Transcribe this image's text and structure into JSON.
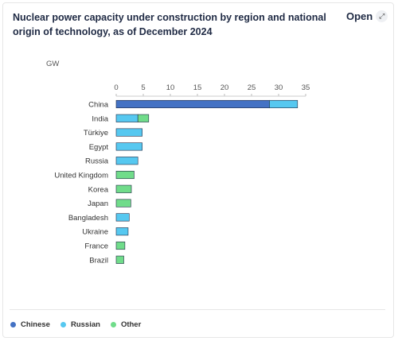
{
  "title": "Nuclear power capacity under construction by region and national origin of technology, as of December 2024",
  "open_button": {
    "label": "Open",
    "icon": "expand-icon"
  },
  "chart_data": {
    "type": "bar",
    "orientation": "horizontal",
    "stacked": true,
    "unit_label": "GW",
    "xlim": [
      0,
      35
    ],
    "ticks": [
      0,
      5,
      10,
      15,
      20,
      25,
      30,
      35
    ],
    "tick_labels": [
      "0",
      "5",
      "10",
      "15",
      "20",
      "25",
      "30",
      "35"
    ],
    "categories": [
      "China",
      "India",
      "Türkiye",
      "Egypt",
      "Russia",
      "United Kingdom",
      "Korea",
      "Japan",
      "Bangladesh",
      "Ukraine",
      "France",
      "Brazil"
    ],
    "series": [
      {
        "name": "Chinese",
        "color": "#4472c4",
        "values": [
          28.3,
          0,
          0,
          0,
          0,
          0,
          0,
          0,
          0,
          0,
          0,
          0
        ]
      },
      {
        "name": "Russian",
        "color": "#56c8f0",
        "values": [
          5.2,
          4.0,
          4.8,
          4.8,
          4.0,
          0,
          0,
          0,
          2.4,
          2.2,
          0,
          0
        ]
      },
      {
        "name": "Other",
        "color": "#70dc8a",
        "values": [
          0,
          2.0,
          0,
          0,
          0,
          3.3,
          2.8,
          2.7,
          0,
          0,
          1.6,
          1.4
        ]
      }
    ],
    "grid": false,
    "legend_position": "bottom-left"
  }
}
